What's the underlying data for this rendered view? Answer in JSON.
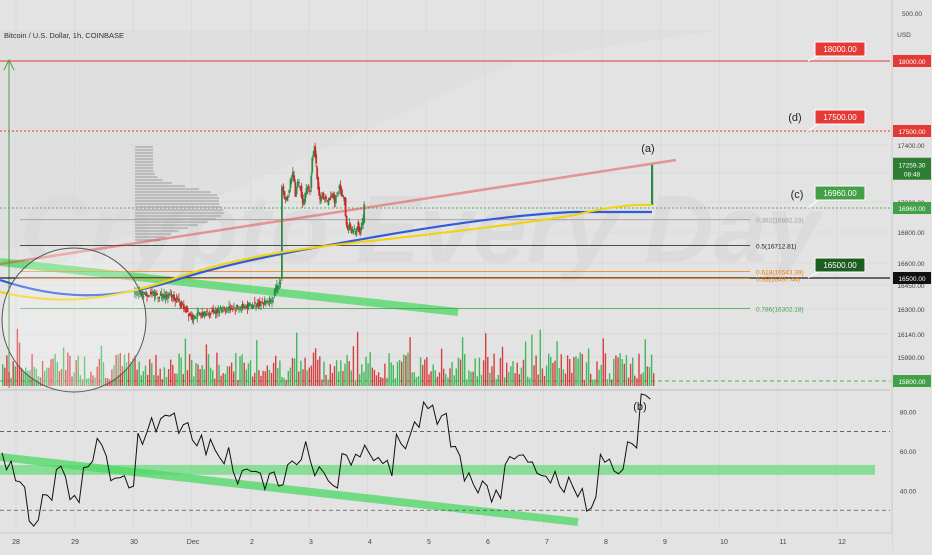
{
  "header": {
    "symbol": "Bitcoin / U.S. Dollar, 1h, COINBASE",
    "axis_currency": "USD",
    "axis_top_label": "500.00"
  },
  "colors": {
    "background": "#e3e3e3",
    "grid": "#d3d3d3",
    "up_candle": "#2e8b45",
    "down_candle": "#c62828",
    "up_volume": "#2fb34a",
    "down_volume": "#d32f2f",
    "ma_blue": "#2f5bd8",
    "ma_yellow": "#f4d20a",
    "red_line": "#e53935",
    "green_level": "#2e7d32",
    "green_zone": "#4cd964",
    "fib_orange": "#f57c00",
    "fib_green": "#43a047"
  },
  "chart_data": [
    {
      "type": "candlestick",
      "title": "Bitcoin / U.S. Dollar, 1h, COINBASE",
      "ylim": [
        15800,
        18200
      ],
      "y_ticks": [
        17400,
        17200,
        17000,
        16800,
        16600,
        16450,
        16300,
        16140,
        15990
      ],
      "x_ticks": [
        "28",
        "29",
        "30",
        "Dec",
        "2",
        "3",
        "4",
        "5",
        "6",
        "7",
        "8",
        "9",
        "10",
        "11",
        "12"
      ],
      "price_path": [
        [
          0,
          16400
        ],
        [
          8,
          16380
        ],
        [
          12,
          16250
        ],
        [
          18,
          16300
        ],
        [
          24,
          16320
        ],
        [
          28,
          16360
        ],
        [
          30,
          16480
        ],
        [
          30.3,
          17100
        ],
        [
          31,
          17000
        ],
        [
          31.5,
          17050
        ],
        [
          32,
          17150
        ],
        [
          32.5,
          17200
        ],
        [
          33,
          17050
        ],
        [
          33.5,
          17150
        ],
        [
          34,
          17100
        ],
        [
          34.5,
          16980
        ],
        [
          35,
          17050
        ],
        [
          35.5,
          17120
        ],
        [
          36,
          17080
        ],
        [
          36.4,
          17300
        ],
        [
          36.8,
          17380
        ],
        [
          37.2,
          17250
        ],
        [
          37.6,
          17100
        ],
        [
          38,
          17000
        ],
        [
          38.5,
          17050
        ],
        [
          39,
          17020
        ],
        [
          39.5,
          16990
        ],
        [
          40,
          17030
        ],
        [
          40.5,
          17060
        ],
        [
          41,
          17010
        ],
        [
          41.5,
          17050
        ],
        [
          42,
          17100
        ],
        [
          42.5,
          17050
        ],
        [
          43,
          17020
        ],
        [
          43.2,
          16900
        ],
        [
          43.6,
          16820
        ],
        [
          44,
          16850
        ],
        [
          44.4,
          16780
        ],
        [
          44.8,
          16830
        ],
        [
          45.2,
          16790
        ],
        [
          45.6,
          16850
        ],
        [
          46,
          16800
        ],
        [
          46.4,
          16830
        ],
        [
          46.8,
          16880
        ],
        [
          47,
          16990
        ]
      ],
      "levels": [
        {
          "label": "18000.00",
          "price": 18000
        },
        {
          "label": "17500.00",
          "price": 17500
        },
        {
          "label": "16960.00",
          "price": 16960
        },
        {
          "label": "16500.00",
          "price": 16500
        },
        {
          "label": "15800.00",
          "price": 15800
        }
      ],
      "current_price": {
        "value": "17259.30",
        "countdown": "08:48"
      },
      "fib_labels": [
        {
          "text": "0.382(16882.23)"
        },
        {
          "text": "0.5(16712.81)"
        },
        {
          "text": "0.618(16543.39)"
        },
        {
          "text": "0.65(16497.44)"
        },
        {
          "text": "0.786(16302.18)"
        }
      ],
      "callouts": [
        {
          "text": "18000.00"
        },
        {
          "text": "17500.00"
        },
        {
          "text": "16960.00"
        },
        {
          "text": "16500.00"
        }
      ],
      "wave_labels": [
        "(a)",
        "(c)",
        "(d)"
      ],
      "watermark": "Crypto Every Day"
    },
    {
      "type": "line",
      "title": "",
      "ylim": [
        20,
        90
      ],
      "y_ticks": [
        "80.00",
        "60.00",
        "40.00"
      ],
      "dashed_levels": [
        70,
        30
      ],
      "zone": [
        48,
        53
      ],
      "wave_labels": [
        "(b)"
      ],
      "x": [
        0,
        1,
        2,
        3,
        4,
        5,
        6,
        7,
        8,
        9,
        10,
        11,
        12,
        13,
        14,
        15,
        16,
        17,
        18,
        19,
        20,
        21,
        22,
        23,
        24,
        25,
        26,
        27,
        28,
        29,
        30,
        31,
        32,
        33,
        34,
        35,
        36,
        37,
        38,
        39,
        40,
        41,
        42,
        43,
        44,
        45,
        46,
        47
      ],
      "y": [
        55,
        42,
        25,
        40,
        48,
        38,
        55,
        62,
        50,
        45,
        68,
        72,
        80,
        74,
        66,
        62,
        58,
        48,
        52,
        44,
        46,
        54,
        60,
        50,
        46,
        55,
        62,
        58,
        52,
        66,
        70,
        83,
        75,
        60,
        48,
        42,
        38,
        54,
        58,
        52,
        46,
        42,
        38,
        34,
        58,
        48,
        60,
        88
      ]
    }
  ]
}
